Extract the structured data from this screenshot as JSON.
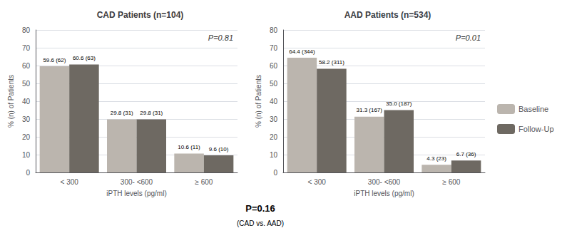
{
  "chart_data": [
    {
      "type": "bar",
      "title": "CAD Patients (n=104)",
      "categories": [
        "< 300",
        "300- <600",
        "≥ 600"
      ],
      "series": [
        {
          "name": "Baseline",
          "color": "#bbb5ae",
          "values": [
            59.6,
            29.8,
            10.6
          ],
          "value_labels": [
            "59.6 (62)",
            "29.8 (31)",
            "10.6 (11)"
          ]
        },
        {
          "name": "Follow-Up",
          "color": "#6e6962",
          "values": [
            60.6,
            29.8,
            9.6
          ],
          "value_labels": [
            "60.6 (63)",
            "29.8 (31)",
            "9.6 (10)"
          ]
        }
      ],
      "annotations": [
        "P=0.81"
      ],
      "xlabel": "iPTH levels (pg/ml)",
      "ylabel": "% (n) of Patients",
      "ylim": [
        0,
        80
      ],
      "yticks": [
        0,
        10,
        20,
        30,
        40,
        50,
        60,
        70,
        80
      ],
      "grid": true,
      "data_labels": true,
      "legend": "right"
    },
    {
      "type": "bar",
      "title": "AAD Patients (n=534)",
      "categories": [
        "< 300",
        "300- <600",
        "≥ 600"
      ],
      "series": [
        {
          "name": "Baseline",
          "color": "#bbb5ae",
          "values": [
            64.4,
            31.3,
            4.3
          ],
          "value_labels": [
            "64.4 (344)",
            "31.3 (167)",
            "4.3 (23)"
          ]
        },
        {
          "name": "Follow-Up",
          "color": "#6e6962",
          "values": [
            58.2,
            35.0,
            6.7
          ],
          "value_labels": [
            "58.2 (311)",
            "35.0 (187)",
            "6.7 (36)"
          ]
        }
      ],
      "annotations": [
        "P=0.01"
      ],
      "xlabel": "iPTH levels (pg/ml)",
      "ylabel": "% (n) of Patients",
      "ylim": [
        0,
        80
      ],
      "yticks": [
        0,
        10,
        20,
        30,
        40,
        50,
        60,
        70,
        80
      ],
      "grid": true,
      "data_labels": true,
      "legend": "right"
    }
  ],
  "annotations": [
    "P=0.16",
    "(CAD vs. AAD)"
  ]
}
